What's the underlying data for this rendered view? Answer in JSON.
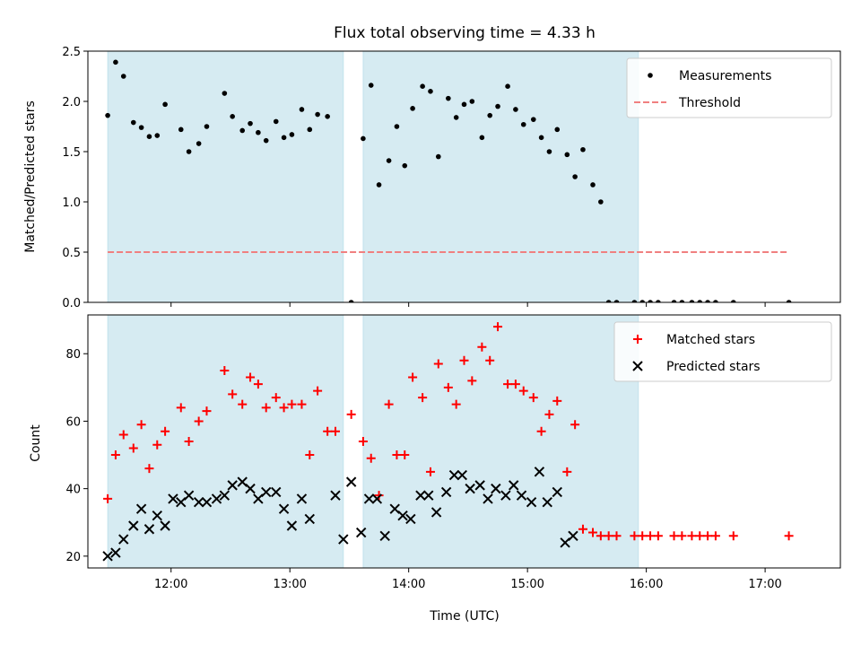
{
  "chart_data": [
    {
      "type": "scatter",
      "title": "Flux total observing time = 4.33 h",
      "ylabel": "Matched/Predicted stars",
      "xlabel": "",
      "xlim": [
        "11:18",
        "17:38"
      ],
      "ylim": [
        0,
        2.5
      ],
      "yticks": [
        "0.0",
        "0.5",
        "1.0",
        "1.5",
        "2.0",
        "2.5"
      ],
      "xticks": [
        "12:00",
        "13:00",
        "14:00",
        "15:00",
        "16:00",
        "17:00"
      ],
      "grid": false,
      "legend_position": "top-right",
      "shaded_intervals": [
        [
          "11:28",
          "13:27"
        ],
        [
          "13:37",
          "15:56"
        ]
      ],
      "shade_color": "#add8e6",
      "series": [
        {
          "name": "Measurements",
          "marker": "dot",
          "color": "#000000",
          "points": [
            [
              "11:28",
              1.86
            ],
            [
              "11:32",
              2.39
            ],
            [
              "11:36",
              2.25
            ],
            [
              "11:41",
              1.79
            ],
            [
              "11:45",
              1.74
            ],
            [
              "11:49",
              1.65
            ],
            [
              "11:53",
              1.66
            ],
            [
              "11:57",
              1.97
            ],
            [
              "12:05",
              1.72
            ],
            [
              "12:09",
              1.5
            ],
            [
              "12:14",
              1.58
            ],
            [
              "12:18",
              1.75
            ],
            [
              "12:27",
              2.08
            ],
            [
              "12:31",
              1.85
            ],
            [
              "12:36",
              1.71
            ],
            [
              "12:40",
              1.78
            ],
            [
              "12:44",
              1.69
            ],
            [
              "12:48",
              1.61
            ],
            [
              "12:53",
              1.8
            ],
            [
              "12:57",
              1.64
            ],
            [
              "13:01",
              1.67
            ],
            [
              "13:06",
              1.92
            ],
            [
              "13:10",
              1.72
            ],
            [
              "13:14",
              1.87
            ],
            [
              "13:19",
              1.85
            ],
            [
              "13:31",
              0.0
            ],
            [
              "13:37",
              1.63
            ],
            [
              "13:41",
              2.16
            ],
            [
              "13:45",
              1.17
            ],
            [
              "13:50",
              1.41
            ],
            [
              "13:54",
              1.75
            ],
            [
              "13:58",
              1.36
            ],
            [
              "14:02",
              1.93
            ],
            [
              "14:07",
              2.15
            ],
            [
              "14:11",
              2.1
            ],
            [
              "14:15",
              1.45
            ],
            [
              "14:20",
              2.03
            ],
            [
              "14:24",
              1.84
            ],
            [
              "14:28",
              1.97
            ],
            [
              "14:32",
              2.0
            ],
            [
              "14:37",
              1.64
            ],
            [
              "14:41",
              1.86
            ],
            [
              "14:45",
              1.95
            ],
            [
              "14:50",
              2.15
            ],
            [
              "14:54",
              1.92
            ],
            [
              "14:58",
              1.77
            ],
            [
              "15:03",
              1.82
            ],
            [
              "15:07",
              1.64
            ],
            [
              "15:11",
              1.5
            ],
            [
              "15:15",
              1.72
            ],
            [
              "15:20",
              1.47
            ],
            [
              "15:24",
              1.25
            ],
            [
              "15:28",
              1.52
            ],
            [
              "15:33",
              1.17
            ],
            [
              "15:37",
              1.0
            ],
            [
              "15:41",
              0.0
            ],
            [
              "15:45",
              0.0
            ],
            [
              "15:54",
              0.0
            ],
            [
              "15:58",
              0.0
            ],
            [
              "16:02",
              0.0
            ],
            [
              "16:06",
              0.0
            ],
            [
              "16:14",
              0.0
            ],
            [
              "16:18",
              0.0
            ],
            [
              "16:23",
              0.0
            ],
            [
              "16:27",
              0.0
            ],
            [
              "16:31",
              0.0
            ],
            [
              "16:35",
              0.0
            ],
            [
              "16:44",
              0.0
            ],
            [
              "17:12",
              0.0
            ]
          ]
        },
        {
          "name": "Threshold",
          "marker": "dashed-line",
          "color": "#f08080",
          "points": [
            [
              "11:28",
              0.5
            ],
            [
              "17:12",
              0.5
            ]
          ]
        }
      ]
    },
    {
      "type": "scatter",
      "title": "",
      "ylabel": "Count",
      "xlabel": "Time (UTC)",
      "xlim": [
        "11:18",
        "17:38"
      ],
      "ylim": [
        16.5,
        91.5
      ],
      "yticks": [
        "20",
        "40",
        "60",
        "80"
      ],
      "xticks": [
        "12:00",
        "13:00",
        "14:00",
        "15:00",
        "16:00",
        "17:00"
      ],
      "grid": false,
      "legend_position": "top-right",
      "shaded_intervals": [
        [
          "11:28",
          "13:27"
        ],
        [
          "13:37",
          "15:56"
        ]
      ],
      "shade_color": "#add8e6",
      "series": [
        {
          "name": "Matched stars",
          "marker": "plus",
          "color": "#ff0000",
          "points": [
            [
              "11:28",
              37
            ],
            [
              "11:32",
              50
            ],
            [
              "11:36",
              56
            ],
            [
              "11:41",
              52
            ],
            [
              "11:45",
              59
            ],
            [
              "11:49",
              46
            ],
            [
              "11:53",
              53
            ],
            [
              "11:57",
              57
            ],
            [
              "12:05",
              64
            ],
            [
              "12:09",
              54
            ],
            [
              "12:14",
              60
            ],
            [
              "12:18",
              63
            ],
            [
              "12:27",
              75
            ],
            [
              "12:31",
              68
            ],
            [
              "12:36",
              65
            ],
            [
              "12:40",
              73
            ],
            [
              "12:44",
              71
            ],
            [
              "12:48",
              64
            ],
            [
              "12:53",
              67
            ],
            [
              "12:57",
              64
            ],
            [
              "13:01",
              65
            ],
            [
              "13:06",
              65
            ],
            [
              "13:10",
              50
            ],
            [
              "13:14",
              69
            ],
            [
              "13:19",
              57
            ],
            [
              "13:23",
              57
            ],
            [
              "13:31",
              62
            ],
            [
              "13:37",
              54
            ],
            [
              "13:41",
              49
            ],
            [
              "13:45",
              38
            ],
            [
              "13:50",
              65
            ],
            [
              "13:54",
              50
            ],
            [
              "13:58",
              50
            ],
            [
              "14:02",
              73
            ],
            [
              "14:07",
              67
            ],
            [
              "14:11",
              45
            ],
            [
              "14:15",
              77
            ],
            [
              "14:20",
              70
            ],
            [
              "14:24",
              65
            ],
            [
              "14:28",
              78
            ],
            [
              "14:32",
              72
            ],
            [
              "14:37",
              82
            ],
            [
              "14:41",
              78
            ],
            [
              "14:45",
              88
            ],
            [
              "14:50",
              71
            ],
            [
              "14:54",
              71
            ],
            [
              "14:58",
              69
            ],
            [
              "15:03",
              67
            ],
            [
              "15:07",
              57
            ],
            [
              "15:11",
              62
            ],
            [
              "15:15",
              66
            ],
            [
              "15:20",
              45
            ],
            [
              "15:24",
              59
            ],
            [
              "15:28",
              28
            ],
            [
              "15:33",
              27
            ],
            [
              "15:37",
              26
            ],
            [
              "15:41",
              26
            ],
            [
              "15:45",
              26
            ],
            [
              "15:54",
              26
            ],
            [
              "15:58",
              26
            ],
            [
              "16:02",
              26
            ],
            [
              "16:06",
              26
            ],
            [
              "16:14",
              26
            ],
            [
              "16:18",
              26
            ],
            [
              "16:23",
              26
            ],
            [
              "16:27",
              26
            ],
            [
              "16:31",
              26
            ],
            [
              "16:35",
              26
            ],
            [
              "16:44",
              26
            ],
            [
              "17:12",
              26
            ]
          ]
        },
        {
          "name": "Predicted stars",
          "marker": "x",
          "color": "#000000",
          "points": [
            [
              "11:28",
              20
            ],
            [
              "11:32",
              21
            ],
            [
              "11:36",
              25
            ],
            [
              "11:41",
              29
            ],
            [
              "11:45",
              34
            ],
            [
              "11:49",
              28
            ],
            [
              "11:53",
              32
            ],
            [
              "11:57",
              29
            ],
            [
              "12:01",
              37
            ],
            [
              "12:05",
              36
            ],
            [
              "12:09",
              38
            ],
            [
              "12:14",
              36
            ],
            [
              "12:18",
              36
            ],
            [
              "12:23",
              37
            ],
            [
              "12:27",
              38
            ],
            [
              "12:31",
              41
            ],
            [
              "12:36",
              42
            ],
            [
              "12:40",
              40
            ],
            [
              "12:44",
              37
            ],
            [
              "12:48",
              39
            ],
            [
              "12:53",
              39
            ],
            [
              "12:57",
              34
            ],
            [
              "13:01",
              29
            ],
            [
              "13:06",
              37
            ],
            [
              "13:10",
              31
            ],
            [
              "13:23",
              38
            ],
            [
              "13:27",
              25
            ],
            [
              "13:31",
              42
            ],
            [
              "13:36",
              27
            ],
            [
              "13:40",
              37
            ],
            [
              "13:44",
              37
            ],
            [
              "13:48",
              26
            ],
            [
              "13:53",
              34
            ],
            [
              "13:57",
              32
            ],
            [
              "14:01",
              31
            ],
            [
              "14:06",
              38
            ],
            [
              "14:10",
              38
            ],
            [
              "14:14",
              33
            ],
            [
              "14:19",
              39
            ],
            [
              "14:23",
              44
            ],
            [
              "14:27",
              44
            ],
            [
              "14:31",
              40
            ],
            [
              "14:36",
              41
            ],
            [
              "14:40",
              37
            ],
            [
              "14:44",
              40
            ],
            [
              "14:49",
              38
            ],
            [
              "14:53",
              41
            ],
            [
              "14:57",
              38
            ],
            [
              "15:02",
              36
            ],
            [
              "15:06",
              45
            ],
            [
              "15:10",
              36
            ],
            [
              "15:15",
              39
            ],
            [
              "15:19",
              24
            ],
            [
              "15:23",
              26
            ]
          ]
        }
      ]
    }
  ]
}
